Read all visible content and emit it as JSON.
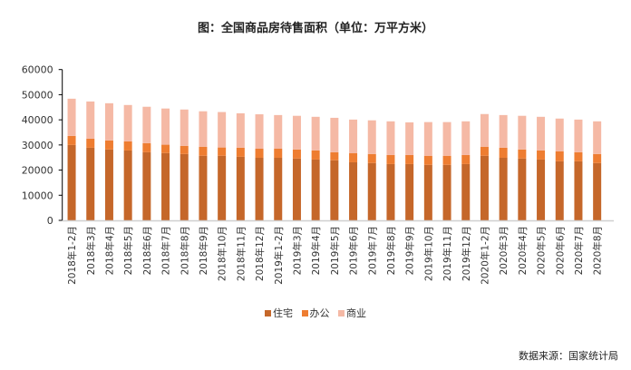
{
  "chart_data": {
    "type": "bar",
    "stacked": true,
    "title": "图：全国商品房待售面积（单位：万平方米）",
    "ylim": [
      0,
      60000
    ],
    "yticks": [
      0,
      10000,
      20000,
      30000,
      40000,
      50000,
      60000
    ],
    "grid": false,
    "legend_position": "bottom",
    "categories": [
      "2018年1-2月",
      "2018年3月",
      "2018年4月",
      "2018年5月",
      "2018年6月",
      "2018年7月",
      "2018年8月",
      "2018年9月",
      "2018年10月",
      "2018年11月",
      "2018年12月",
      "2019年1-2月",
      "2019年3月",
      "2019年4月",
      "2019年5月",
      "2019年6月",
      "2019年7月",
      "2019年8月",
      "2019年9月",
      "2019年10月",
      "2019年11月",
      "2019年12月",
      "2020年1-2月",
      "2020年3月",
      "2020年4月",
      "2020年5月",
      "2020年6月",
      "2020年7月",
      "2020年8月"
    ],
    "series": [
      {
        "name": "住宅",
        "color": "#C5672A",
        "values": [
          30000,
          28900,
          28200,
          27800,
          27100,
          26800,
          26400,
          25700,
          25700,
          25300,
          24900,
          24900,
          24600,
          24200,
          23900,
          23100,
          22800,
          22400,
          22400,
          22100,
          22100,
          22400,
          25700,
          24900,
          24600,
          24200,
          23500,
          23500,
          22800
        ]
      },
      {
        "name": "办公",
        "color": "#EE7D31",
        "values": [
          3600,
          3600,
          3600,
          3600,
          3600,
          3300,
          3200,
          3600,
          3300,
          3600,
          3600,
          3600,
          3600,
          3600,
          3200,
          3600,
          3600,
          3600,
          3600,
          3600,
          3600,
          3600,
          3600,
          4000,
          3600,
          3600,
          4000,
          3600,
          3600
        ]
      },
      {
        "name": "商业",
        "color": "#F5B9A5",
        "values": [
          14800,
          14800,
          14800,
          14500,
          14500,
          14400,
          14500,
          14100,
          14100,
          13700,
          13700,
          13400,
          13400,
          13400,
          13700,
          13400,
          13400,
          13400,
          13000,
          13400,
          13400,
          13400,
          13000,
          13000,
          13400,
          13400,
          13000,
          13000,
          13000
        ]
      }
    ]
  },
  "source": "数据来源：国家统计局"
}
